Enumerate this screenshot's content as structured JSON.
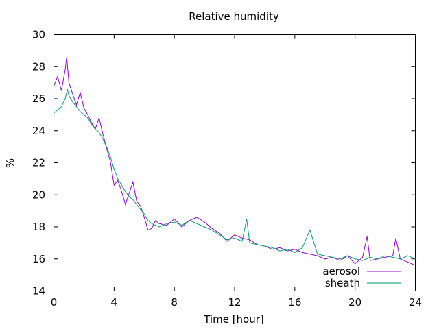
{
  "chart_data": {
    "type": "line",
    "title": "Relative humidity",
    "xlabel": "Time [hour]",
    "ylabel": "%",
    "xlim": [
      0,
      24
    ],
    "ylim": [
      14,
      30
    ],
    "xticks": [
      "0",
      "4",
      "8",
      "12",
      "16",
      "20",
      "24"
    ],
    "yticks": [
      "14",
      "16",
      "18",
      "20",
      "22",
      "24",
      "26",
      "28",
      "30"
    ],
    "grid": false,
    "legend_position": "bottom-right",
    "series": [
      {
        "name": "aerosol",
        "color": "#9400d3",
        "x": [
          0,
          0.25,
          0.5,
          0.75,
          0.85,
          1,
          1.25,
          1.5,
          1.75,
          2,
          2.25,
          2.5,
          2.75,
          3,
          3.25,
          3.5,
          3.75,
          4,
          4.25,
          4.5,
          4.75,
          5,
          5.25,
          5.5,
          5.75,
          6,
          6.25,
          6.5,
          6.75,
          7,
          7.5,
          8,
          8.5,
          9,
          9.5,
          10,
          10.5,
          11,
          11.5,
          12,
          12.5,
          13,
          13.5,
          14,
          14.5,
          15,
          15.5,
          16,
          16.5,
          17,
          17.5,
          18,
          18.5,
          19,
          19.5,
          20,
          20.5,
          20.8,
          21,
          21.5,
          22,
          22.5,
          22.7,
          23,
          23.5,
          24
        ],
        "y": [
          26.8,
          27.4,
          26.5,
          27.8,
          28.6,
          27.0,
          26.3,
          25.6,
          26.4,
          25.4,
          25.0,
          24.5,
          24.1,
          24.8,
          23.8,
          22.9,
          22.1,
          20.6,
          20.9,
          20.2,
          19.4,
          20.1,
          20.8,
          19.6,
          19.3,
          18.6,
          17.8,
          17.9,
          18.4,
          18.2,
          18.1,
          18.5,
          18.0,
          18.4,
          18.6,
          18.3,
          17.9,
          17.6,
          17.1,
          17.5,
          17.3,
          17.2,
          16.9,
          16.8,
          16.6,
          16.7,
          16.5,
          16.6,
          16.4,
          16.3,
          16.2,
          16.0,
          16.1,
          15.9,
          16.2,
          15.7,
          16.1,
          17.4,
          15.9,
          16.0,
          16.1,
          16.2,
          17.3,
          16.0,
          15.8,
          15.6
        ]
      },
      {
        "name": "sheath",
        "color": "#009e73",
        "x": [
          0,
          0.25,
          0.5,
          0.75,
          0.9,
          1,
          1.25,
          1.5,
          1.75,
          2,
          2.25,
          2.5,
          2.75,
          3,
          3.25,
          3.5,
          3.75,
          4,
          4.25,
          4.5,
          4.75,
          5,
          5.25,
          5.5,
          5.75,
          6,
          6.25,
          6.5,
          6.75,
          7,
          7.5,
          8,
          8.5,
          9,
          9.5,
          10,
          10.5,
          11,
          11.5,
          12,
          12.5,
          12.8,
          13,
          13.5,
          14,
          14.5,
          15,
          15.5,
          16,
          16.5,
          17,
          17.5,
          18,
          18.5,
          19,
          19.5,
          20,
          20.5,
          21,
          21.5,
          22,
          22.5,
          23,
          23.5,
          24
        ],
        "y": [
          25.1,
          25.3,
          25.5,
          26.0,
          26.6,
          26.2,
          25.8,
          25.5,
          25.2,
          25.0,
          24.8,
          24.4,
          24.1,
          23.9,
          23.5,
          23.0,
          22.4,
          21.6,
          21.0,
          20.6,
          20.2,
          19.9,
          19.7,
          19.4,
          19.1,
          18.8,
          18.4,
          18.2,
          18.1,
          18.0,
          18.2,
          18.3,
          18.1,
          18.4,
          18.2,
          18.0,
          17.8,
          17.5,
          17.2,
          17.3,
          17.1,
          18.5,
          17.0,
          16.9,
          16.8,
          16.7,
          16.5,
          16.6,
          16.4,
          16.7,
          17.8,
          16.3,
          16.2,
          16.1,
          16.0,
          16.2,
          16.0,
          15.9,
          16.1,
          16.0,
          16.2,
          16.1,
          16.0,
          16.2,
          16.0
        ]
      }
    ]
  }
}
